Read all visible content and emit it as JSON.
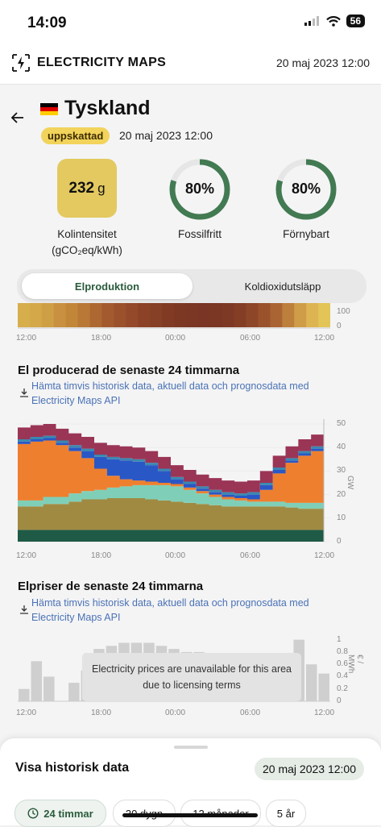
{
  "status_bar": {
    "time": "14:09",
    "battery": "56"
  },
  "header": {
    "brand": "ELECTRICITY MAPS",
    "date": "20 maj 2023 12:00"
  },
  "zone": {
    "name": "Tyskland",
    "badge": "uppskattad",
    "date": "20 maj 2023 12:00"
  },
  "metrics": {
    "carbon_intensity_value": "232",
    "carbon_intensity_unit": "g",
    "carbon_intensity_label": "Kolintensitet",
    "carbon_intensity_unit_label": "(gCO₂eq/kWh)",
    "fossil_free_value": "80%",
    "fossil_free_fraction": 0.8,
    "fossil_free_label": "Fossilfritt",
    "renewable_value": "80%",
    "renewable_fraction": 0.8,
    "renewable_label": "Förnybart"
  },
  "tabs": {
    "active": "Elproduktion",
    "inactive": "Koldioxidutsläpp"
  },
  "time_ticks": [
    "12:00",
    "18:00",
    "00:00",
    "06:00",
    "12:00"
  ],
  "intensity_strip": {
    "y_ticks": [
      "100",
      "0"
    ],
    "colors": [
      "#d7ae4c",
      "#d4a849",
      "#cf9f45",
      "#c89040",
      "#c28638",
      "#b97836",
      "#ad6832",
      "#a35a2f",
      "#9b512b",
      "#94492a",
      "#8c4227",
      "#864026",
      "#813b25",
      "#7d3824",
      "#7b3624",
      "#7a3524",
      "#7b3624",
      "#7e3925",
      "#843e26",
      "#8e4628",
      "#9a522c",
      "#aa6332",
      "#bd7f3c",
      "#cf9d48",
      "#dcb452",
      "#e3c457"
    ]
  },
  "production": {
    "title": "El producerad de senaste 24 timmarna",
    "link": "Hämta timvis historisk data, aktuell data och prognosdata med Electricity Maps API",
    "y_unit": "GW"
  },
  "prices": {
    "title": "Elpriser de senaste 24 timmarna",
    "link": "Hämta timvis historisk data, aktuell data och prognosdata med Electricity Maps API",
    "y_unit": "€ / MWh",
    "unavailable_message": "Electricity prices are unavailable for this area due to licensing terms"
  },
  "chart_data": [
    {
      "type": "area",
      "title": "El producerad de senaste 24 timmarna",
      "xlabel": "",
      "ylabel": "GW",
      "x": [
        "12:00",
        "13:00",
        "14:00",
        "15:00",
        "16:00",
        "17:00",
        "18:00",
        "19:00",
        "20:00",
        "21:00",
        "22:00",
        "23:00",
        "00:00",
        "01:00",
        "02:00",
        "03:00",
        "04:00",
        "05:00",
        "06:00",
        "07:00",
        "08:00",
        "09:00",
        "10:00",
        "11:00",
        "12:00"
      ],
      "ylim": [
        0,
        50
      ],
      "y_ticks": [
        0,
        10,
        20,
        30,
        40,
        50
      ],
      "series": [
        {
          "color": "#1e5a46",
          "values": [
            5,
            5,
            5,
            5,
            5,
            5,
            5,
            5,
            5,
            5,
            5,
            5,
            5,
            5,
            5,
            5,
            5,
            5,
            5,
            5,
            5,
            5,
            5,
            5,
            5
          ]
        },
        {
          "color": "#a08a42",
          "values": [
            10,
            10,
            11,
            11,
            12,
            13,
            13,
            13.5,
            13.5,
            13.5,
            13,
            12.5,
            12,
            11.5,
            11,
            10.5,
            10,
            10,
            10,
            10,
            10,
            9.5,
            9,
            9,
            9
          ]
        },
        {
          "color": "#7fcfb8",
          "values": [
            2.5,
            2.5,
            3,
            3,
            3.5,
            3.5,
            4,
            4.5,
            5,
            5.5,
            6,
            6.5,
            6.5,
            5.5,
            4.5,
            3.5,
            3,
            2.5,
            2,
            2,
            2,
            2,
            2.5,
            2.5,
            2.5
          ]
        },
        {
          "color": "#ee7f2f",
          "values": [
            24,
            25,
            24,
            22,
            18,
            14,
            9,
            5,
            3,
            2,
            1.5,
            1,
            1,
            1,
            1,
            1,
            1,
            1,
            1,
            5,
            12,
            17,
            20,
            22,
            23
          ]
        },
        {
          "color": "#2a57c6",
          "values": [
            1,
            1,
            1,
            1,
            1.5,
            3,
            5,
            7,
            8,
            8,
            7,
            5,
            2,
            1.5,
            1,
            1,
            1,
            1,
            2,
            2,
            1.5,
            1,
            1,
            1,
            1
          ]
        },
        {
          "color": "#3a88b0",
          "values": [
            1,
            1,
            1,
            1,
            1,
            1,
            1,
            1,
            1,
            1,
            1,
            1,
            1,
            1,
            1,
            1,
            1,
            1,
            1,
            1,
            1,
            1,
            1,
            1,
            1
          ]
        },
        {
          "color": "#9a3556",
          "values": [
            5,
            5,
            5,
            5,
            5,
            5,
            5,
            5,
            5,
            5,
            5,
            5,
            5,
            5,
            5,
            5,
            5,
            5,
            5,
            5,
            5,
            5,
            5,
            5,
            5
          ]
        }
      ]
    },
    {
      "type": "bar",
      "title": "Elpriser de senaste 24 timmarna",
      "xlabel": "",
      "ylabel": "€ / MWh",
      "categories": [
        "12:00",
        "13:00",
        "14:00",
        "15:00",
        "16:00",
        "17:00",
        "18:00",
        "19:00",
        "20:00",
        "21:00",
        "22:00",
        "23:00",
        "00:00",
        "01:00",
        "02:00",
        "03:00",
        "04:00",
        "05:00",
        "06:00",
        "07:00",
        "08:00",
        "09:00",
        "10:00",
        "11:00",
        "12:00"
      ],
      "values": [
        0.2,
        0.65,
        0.4,
        0,
        0.3,
        0.5,
        0.85,
        0.9,
        0.95,
        0.95,
        0.95,
        0.9,
        0.85,
        0.8,
        0.8,
        0.75,
        0.75,
        0.7,
        0.7,
        0.6,
        0.55,
        0.6,
        1.0,
        0.6,
        0.45
      ],
      "ylim": [
        0,
        1.1
      ],
      "y_ticks": [
        "0",
        "0.2",
        "0.4",
        "0.6",
        "0.8",
        "1"
      ]
    }
  ],
  "history": {
    "title": "Visa historisk data",
    "date": "20 maj 2023 12:00",
    "ranges": [
      "24 timmar",
      "30 dygn",
      "12 månader",
      "5 år"
    ]
  }
}
